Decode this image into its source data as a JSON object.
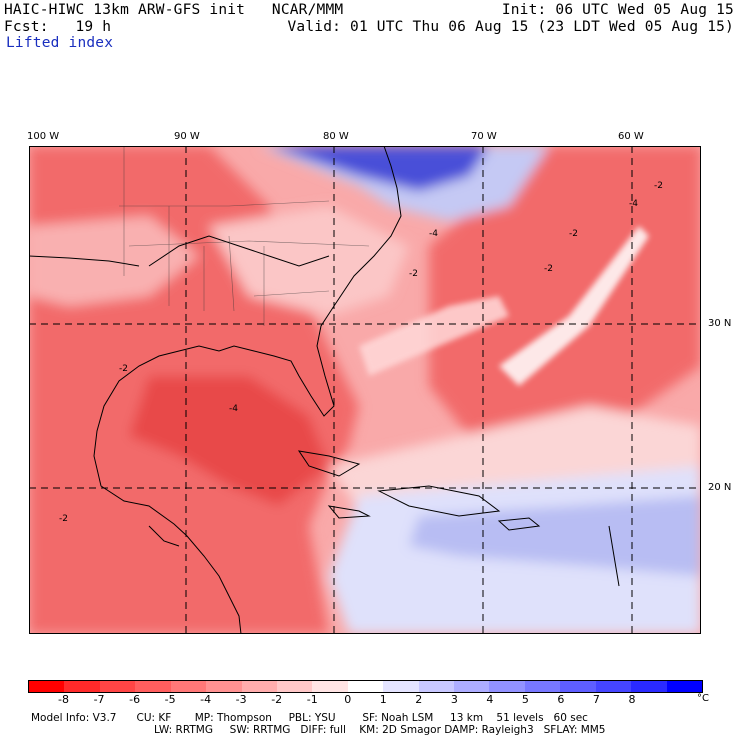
{
  "header": {
    "line1_left": "HAIC-HIWC 13km ARW-GFS init   NCAR/MMM",
    "line1_right": "Init: 06 UTC Wed 05 Aug 15",
    "line2_left": "Fcst:   19 h",
    "line2_right": "Valid: 01 UTC Thu 06 Aug 15 (23 LDT Wed 05 Aug 15)",
    "field_name": "Lifted index"
  },
  "map": {
    "longitude_labels": [
      "100 W",
      "90 W",
      "80 W",
      "70 W",
      "60 W"
    ],
    "latitude_labels": [
      "30 N",
      "20 N"
    ],
    "contour_labels": [
      "-2",
      "-2",
      "-4",
      "-2",
      "-4",
      "-2",
      "-2",
      "-4",
      "-2"
    ],
    "colors": {
      "deep_unstable": "#e8293a",
      "unstable": "#f56a6a",
      "mild": "#fbb4b4",
      "neutral": "#ffffff",
      "stable_light": "#c8ccf5",
      "stable": "#7d85e6",
      "very_stable": "#2d2ee0"
    }
  },
  "colorbar": {
    "levels": [
      "-8",
      "-7",
      "-6",
      "-5",
      "-4",
      "-3",
      "-2",
      "-1",
      "0",
      "1",
      "2",
      "3",
      "4",
      "5",
      "6",
      "7",
      "8"
    ],
    "unit": "°C",
    "colors": [
      "#ff0000",
      "#ff2a2a",
      "#ff4545",
      "#ff5e5e",
      "#ff7878",
      "#ff9292",
      "#ffadad",
      "#ffc8c8",
      "#ffe4e4",
      "#ffffff",
      "#e4e4ff",
      "#c8c8ff",
      "#adadff",
      "#9292ff",
      "#7878ff",
      "#5e5eff",
      "#4545ff",
      "#2a2aff",
      "#0000ff"
    ]
  },
  "model_info": {
    "line1": "Model Info: V3.7      CU: KF       MP: Thompson     PBL: YSU        SF: Noah LSM     13 km    51 levels   60 sec",
    "line2": "LW: RRTMG     SW: RRTMG   DIFF: full    KM: 2D Smagor DAMP: Rayleigh3   SFLAY: MM5"
  }
}
